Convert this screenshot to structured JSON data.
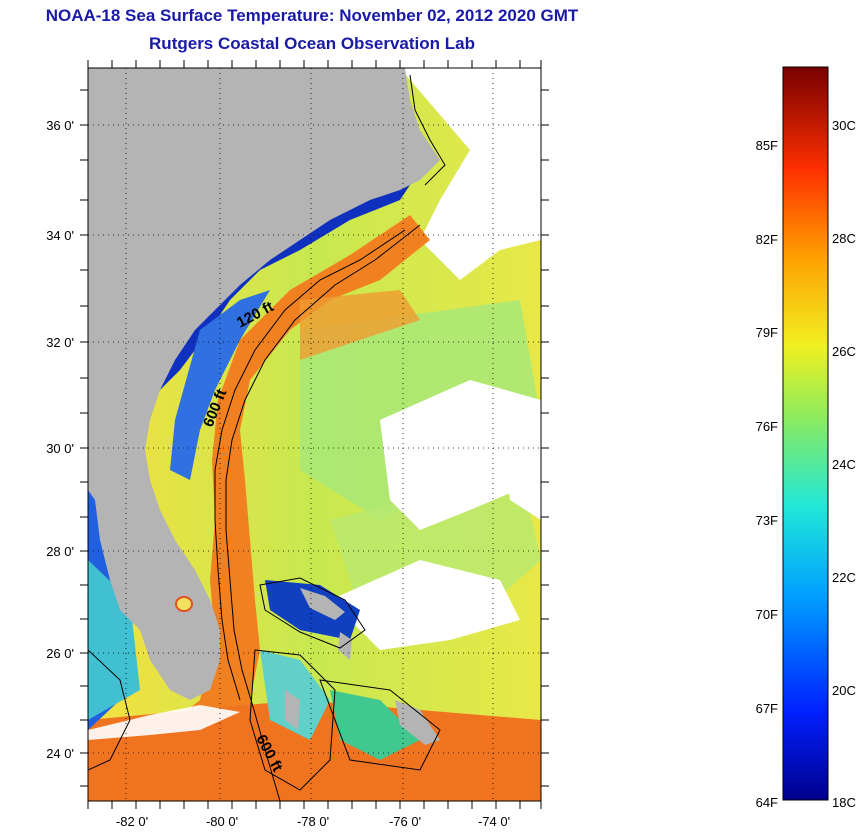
{
  "title": {
    "line1": "NOAA-18 Sea Surface Temperature:  November 02, 2012 2020 GMT",
    "line2": "Rutgers Coastal Ocean Observation Lab"
  },
  "map": {
    "lat_labels": [
      "36 0'",
      "34 0'",
      "32 0'",
      "30 0'",
      "28 0'",
      "26 0'",
      "24 0'"
    ],
    "lon_labels": [
      "-82 0'",
      "-80 0'",
      "-78 0'",
      "-76 0'",
      "-74 0'"
    ],
    "contour_labels": [
      "120 ft",
      "600 ft",
      "600 ft"
    ],
    "colors": {
      "land": "#b4b4b4",
      "cloud": "#ffffff",
      "cold": "#0a1aa0",
      "warm": "#f07a20"
    }
  },
  "colorbar": {
    "fahrenheit_labels": [
      "85F",
      "82F",
      "79F",
      "76F",
      "73F",
      "70F",
      "67F",
      "64F"
    ],
    "celsius_labels": [
      "30C",
      "28C",
      "26C",
      "24C",
      "22C",
      "20C",
      "18C"
    ]
  }
}
